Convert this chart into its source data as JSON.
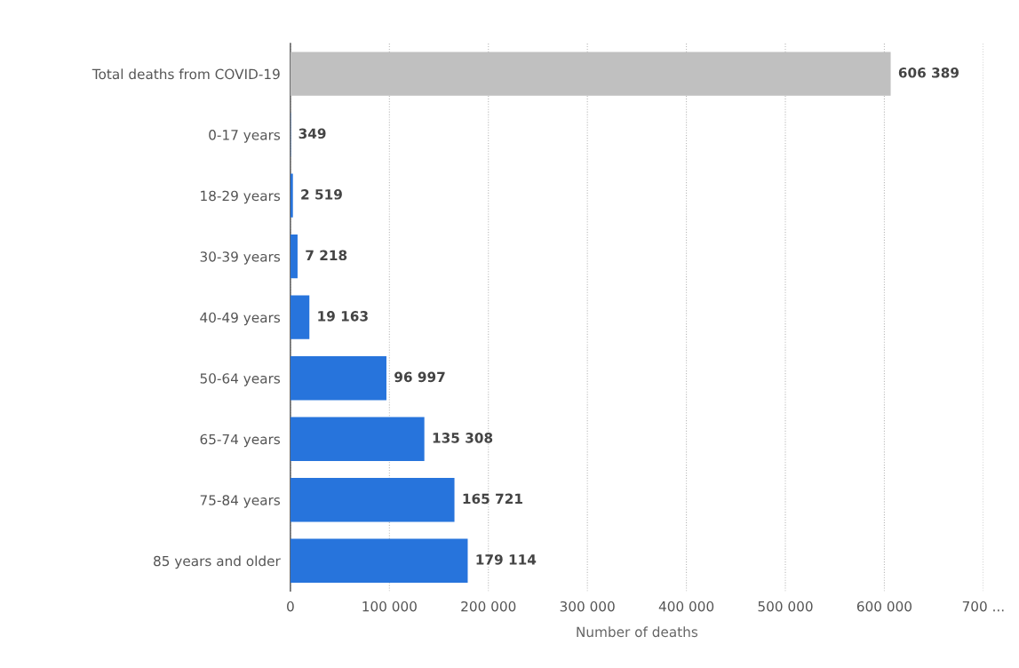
{
  "chart_data": {
    "type": "bar",
    "orientation": "horizontal",
    "xlabel": "Number of deaths",
    "categories": [
      "Total deaths from COVID-19",
      "0-17 years",
      "18-29 years",
      "30-39 years",
      "40-49 years",
      "50-64 years",
      "65-74 years",
      "75-84 years",
      "85 years and older"
    ],
    "values": [
      606389,
      349,
      2519,
      7218,
      19163,
      96997,
      135308,
      165721,
      179114
    ],
    "value_labels": [
      "606 389",
      "349",
      "2 519",
      "7 218",
      "19 163",
      "96 997",
      "135 308",
      "165 721",
      "179 114"
    ],
    "colors": [
      "#c0c0c0",
      "#2774dc",
      "#2774dc",
      "#2774dc",
      "#2774dc",
      "#2774dc",
      "#2774dc",
      "#2774dc",
      "#2774dc"
    ],
    "xlim": [
      0,
      700000
    ],
    "xticks": [
      0,
      {
        "value": 100000,
        "label": "100 000"
      },
      {
        "value": 200000,
        "label": "200 000"
      },
      {
        "value": 300000,
        "label": "300 000"
      },
      {
        "value": 400000,
        "label": "400 000"
      },
      {
        "value": 500000,
        "label": "500 000"
      },
      {
        "value": 600000,
        "label": "600 000"
      },
      {
        "value": 700000,
        "label": "700 ..."
      }
    ],
    "grid": "x",
    "legend": false
  }
}
